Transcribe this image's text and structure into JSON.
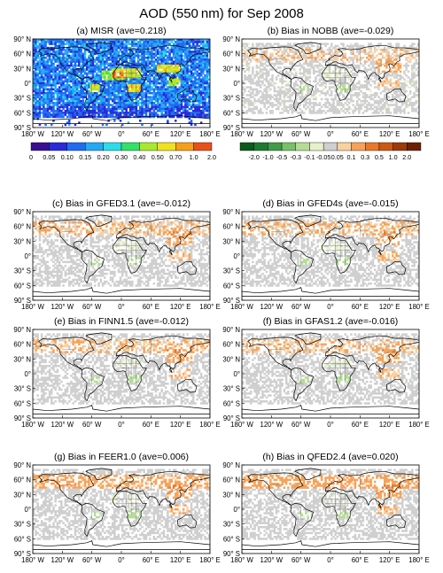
{
  "figure": {
    "title": "AOD (550 nm) for Sep 2008"
  },
  "colors": {
    "misr_scale": [
      "#3a0f8f",
      "#2a2ad8",
      "#1f6cf0",
      "#25a8f5",
      "#2bdde8",
      "#32e06a",
      "#a8e830",
      "#f0e020",
      "#f5a01c",
      "#e8501a",
      "#cc1010"
    ],
    "bias_scale": [
      "#0b5a1e",
      "#1e7a32",
      "#3f9b4a",
      "#78c06a",
      "#b5dc95",
      "#e5f2c8",
      "#cfcfcf",
      "#fbd0a0",
      "#f5a35a",
      "#e8782a",
      "#c95a14",
      "#9c3a0a",
      "#6b2006"
    ],
    "land_outline": "#000000",
    "country_outline": "#555555"
  },
  "chart_data": [
    {
      "panel": "a",
      "type": "heatmap",
      "title": "(a) MISR (ave=0.218)",
      "variable": "AOD",
      "mean": 0.218,
      "x_ticks": [
        "180° W",
        "120° W",
        "60° W",
        "0°",
        "60° E",
        "120° E",
        "180° E"
      ],
      "y_ticks": [
        "90° N",
        "60° N",
        "30° N",
        "0°",
        "30° S",
        "60° S",
        "90° S"
      ],
      "xlim": [
        -180,
        180
      ],
      "ylim": [
        -90,
        90
      ],
      "colorbar": {
        "labels": [
          "0",
          "0.05",
          "0.10",
          "0.15",
          "0.20",
          "0.30",
          "0.40",
          "0.50",
          "0.70",
          "1.0",
          "2.0"
        ]
      }
    },
    {
      "panel": "b",
      "type": "heatmap",
      "title": "(b) Bias in NOBB (ave=-0.029)",
      "variable": "AOD bias",
      "mean": -0.029,
      "x_ticks": [
        "180° W",
        "120° W",
        "60° W",
        "0°",
        "60° E",
        "120° E",
        "180° E"
      ],
      "y_ticks": [
        "90° N",
        "60° N",
        "30° N",
        "0°",
        "30° S",
        "60° S",
        "90° S"
      ],
      "xlim": [
        -180,
        180
      ],
      "ylim": [
        -90,
        90
      ],
      "colorbar": {
        "labels": [
          "-2.0",
          "-1.0",
          "-0.5",
          "-0.3",
          "-0.1",
          "-0.05",
          "0.05",
          "0.1",
          "0.3",
          "0.5",
          "1.0",
          "2.0"
        ]
      }
    },
    {
      "panel": "c",
      "type": "heatmap",
      "title": "(c) Bias in GFED3.1 (ave=-0.012)",
      "mean": -0.012,
      "x_ticks": [
        "180° W",
        "120° W",
        "60° W",
        "0°",
        "60° E",
        "120° E",
        "180° E"
      ],
      "y_ticks": [
        "90° N",
        "60° N",
        "30° N",
        "0°",
        "30° S",
        "60° S",
        "90° S"
      ],
      "xlim": [
        -180,
        180
      ],
      "ylim": [
        -90,
        90
      ]
    },
    {
      "panel": "d",
      "type": "heatmap",
      "title": "(d) Bias in GFED4s (ave=-0.015)",
      "mean": -0.015,
      "x_ticks": [
        "180° W",
        "120° W",
        "60° W",
        "0°",
        "60° E",
        "120° E",
        "180° E"
      ],
      "y_ticks": [
        "90° N",
        "60° N",
        "30° N",
        "0°",
        "30° S",
        "60° S",
        "90° S"
      ],
      "xlim": [
        -180,
        180
      ],
      "ylim": [
        -90,
        90
      ]
    },
    {
      "panel": "e",
      "type": "heatmap",
      "title": "(e) Bias in FINN1.5 (ave=-0.012)",
      "mean": -0.012,
      "x_ticks": [
        "180° W",
        "120° W",
        "60° W",
        "0°",
        "60° E",
        "120° E",
        "180° E"
      ],
      "y_ticks": [
        "90° N",
        "60° N",
        "30° N",
        "0°",
        "30° S",
        "60° S",
        "90° S"
      ],
      "xlim": [
        -180,
        180
      ],
      "ylim": [
        -90,
        90
      ]
    },
    {
      "panel": "f",
      "type": "heatmap",
      "title": "(f) Bias in GFAS1.2 (ave=-0.016)",
      "mean": -0.016,
      "x_ticks": [
        "180° W",
        "120° W",
        "60° W",
        "0°",
        "60° E",
        "120° E",
        "180° E"
      ],
      "y_ticks": [
        "90° N",
        "60° N",
        "30° N",
        "0°",
        "30° S",
        "60° S",
        "90° S"
      ],
      "xlim": [
        -180,
        180
      ],
      "ylim": [
        -90,
        90
      ]
    },
    {
      "panel": "g",
      "type": "heatmap",
      "title": "(g) Bias in FEER1.0 (ave=0.006)",
      "mean": 0.006,
      "x_ticks": [
        "180° W",
        "120° W",
        "60° W",
        "0°",
        "60° E",
        "120° E",
        "180° E"
      ],
      "y_ticks": [
        "90° N",
        "60° N",
        "30° N",
        "0°",
        "30° S",
        "60° S",
        "90° S"
      ],
      "xlim": [
        -180,
        180
      ],
      "ylim": [
        -90,
        90
      ]
    },
    {
      "panel": "h",
      "type": "heatmap",
      "title": "(h) Bias in QFED2.4 (ave=0.020)",
      "mean": 0.02,
      "x_ticks": [
        "180° W",
        "120° W",
        "60° W",
        "0°",
        "60° E",
        "120° E",
        "180° E"
      ],
      "y_ticks": [
        "90° N",
        "60° N",
        "30° N",
        "0°",
        "30° S",
        "60° S",
        "90° S"
      ],
      "xlim": [
        -180,
        180
      ],
      "ylim": [
        -90,
        90
      ]
    }
  ]
}
